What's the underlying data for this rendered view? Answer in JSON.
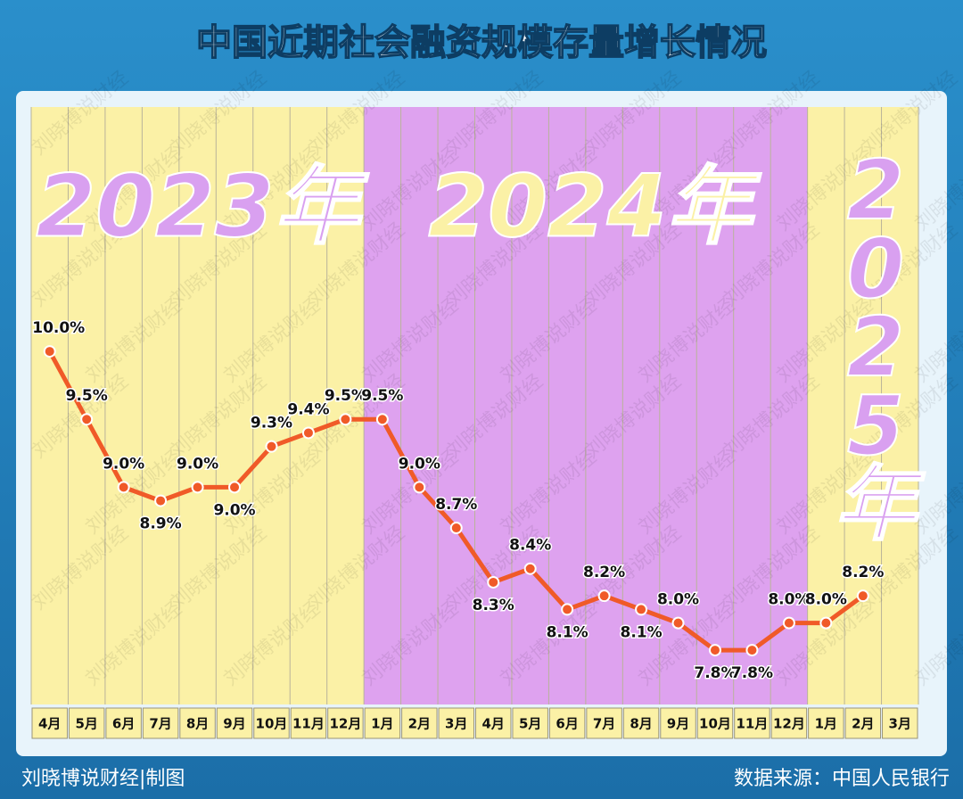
{
  "chart_data": {
    "type": "line",
    "title": "中国近期社会融资规模存量增长情况",
    "categories": [
      "4月",
      "5月",
      "6月",
      "7月",
      "8月",
      "9月",
      "10月",
      "11月",
      "12月",
      "1月",
      "2月",
      "3月",
      "4月",
      "5月",
      "6月",
      "7月",
      "8月",
      "9月",
      "10月",
      "11月",
      "12月",
      "1月",
      "2月",
      "3月"
    ],
    "values": [
      10.0,
      9.5,
      9.0,
      8.9,
      9.0,
      9.0,
      9.3,
      9.4,
      9.5,
      9.5,
      9.0,
      8.7,
      8.3,
      8.4,
      8.1,
      8.2,
      8.1,
      8.0,
      7.8,
      7.8,
      8.0,
      8.0,
      8.2,
      null
    ],
    "value_labels": [
      "10.0%",
      "9.5%",
      "9.0%",
      "8.9%",
      "9.0%",
      "9.0%",
      "9.3%",
      "9.4%",
      "9.5%",
      "9.5%",
      "9.0%",
      "8.7%",
      "8.3%",
      "8.4%",
      "8.1%",
      "8.2%",
      "8.1%",
      "8.0%",
      "7.8%",
      "7.8%",
      "8.0%",
      "8.0%",
      "8.2%",
      null
    ],
    "color": "#f05a28",
    "ylim": [
      7.4,
      11.8
    ],
    "years": [
      "2023年",
      "2024年",
      "2025年"
    ]
  },
  "credit": "刘晓博说财经|制图",
  "source": "数据来源：中国人民银行",
  "watermark": "刘晓博说财经"
}
